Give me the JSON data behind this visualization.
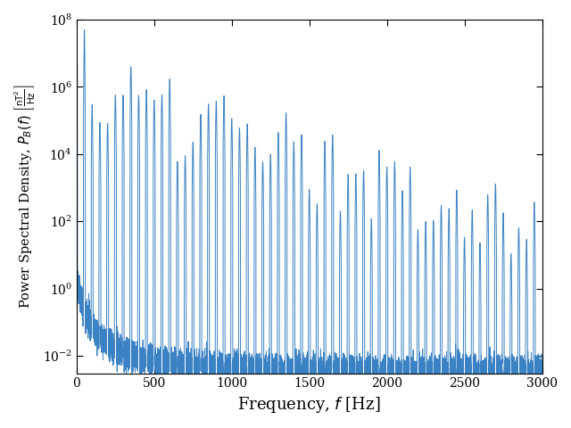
{
  "xlim": [
    0,
    3000
  ],
  "ylim": [
    0.003,
    100000000.0
  ],
  "xlabel": "Frequency, $f$ [Hz]",
  "ylabel": "Power Spectral Density, $P_B(f)$ $\\left[\\frac{\\mathrm{nT}^2}{\\mathrm{Hz}}\\right]$",
  "line_color": "#3b82c4",
  "line_width": 0.7,
  "xticks": [
    0,
    500,
    1000,
    1500,
    2000,
    2500,
    3000
  ],
  "yticks": [
    0.01,
    1.0,
    100.0,
    10000.0,
    1000000.0,
    100000000.0
  ],
  "bg_color": "#ffffff",
  "figsize": [
    6.4,
    4.8
  ],
  "dpi": 100,
  "seed": 12345
}
